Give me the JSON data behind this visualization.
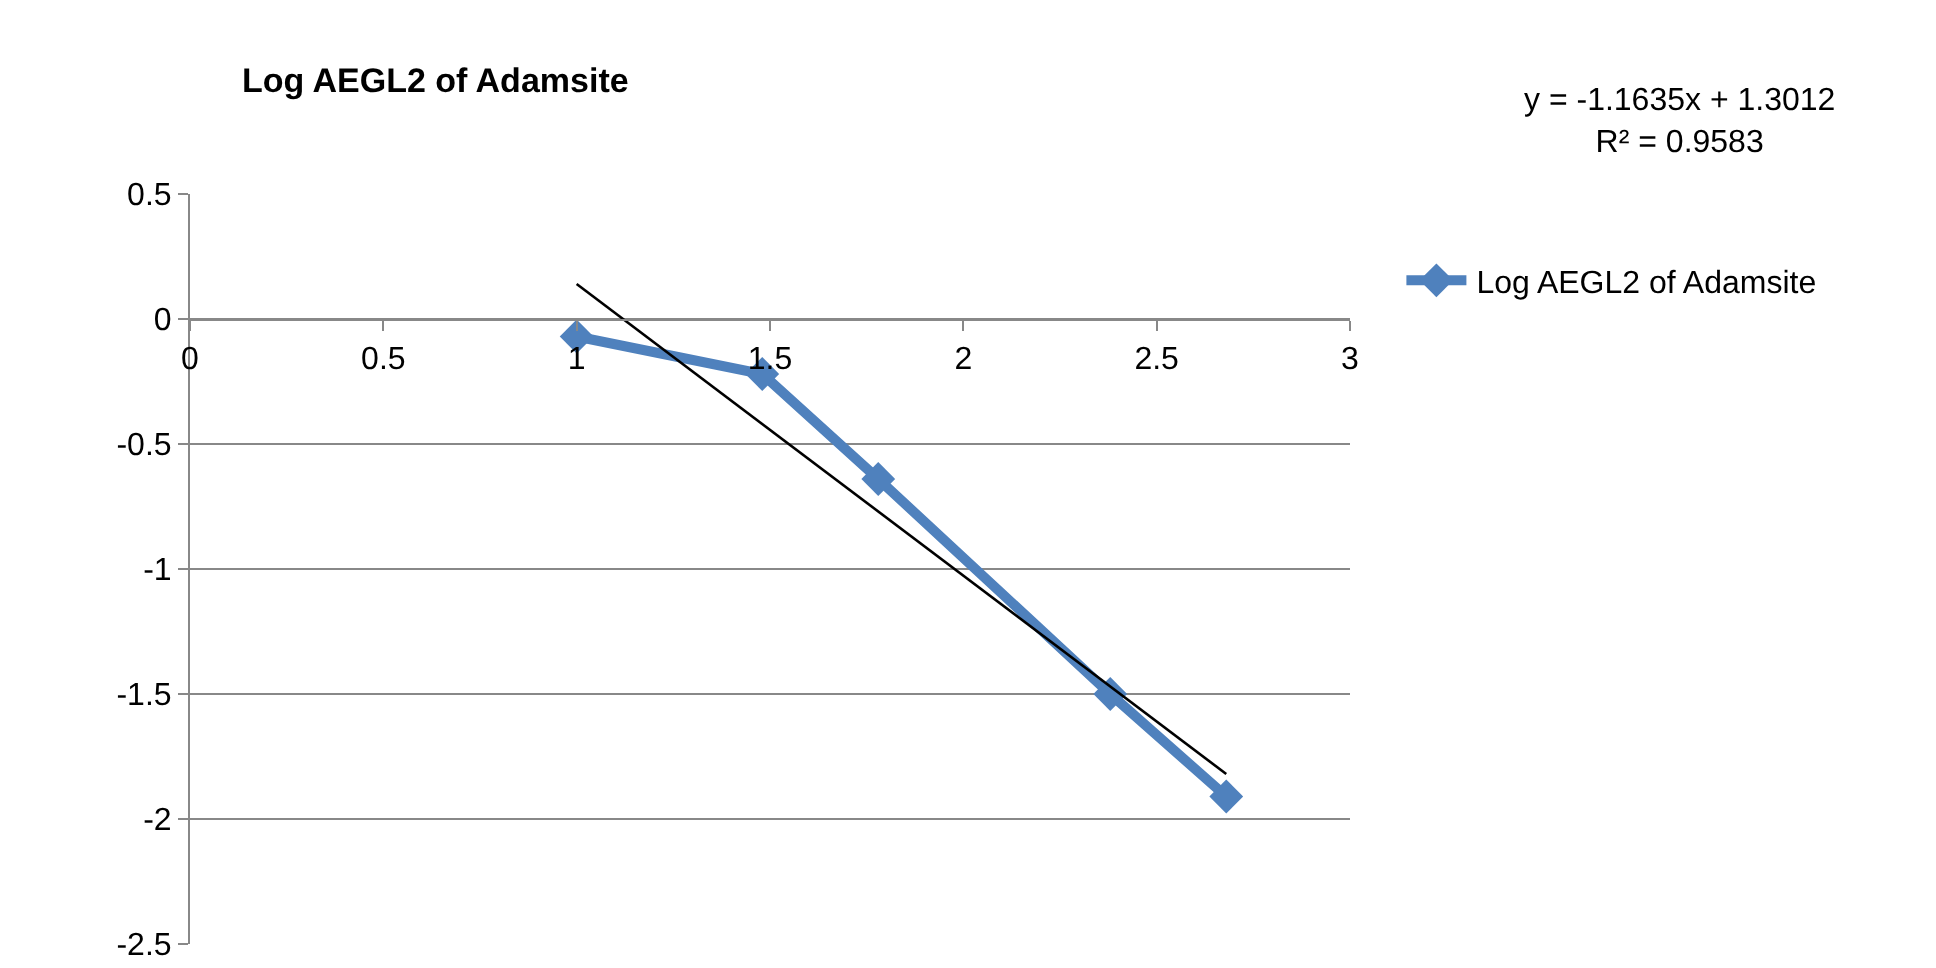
{
  "chart_data": {
    "type": "line",
    "title": "Log AEGL2 of Adamsite",
    "series": [
      {
        "name": "Log AEGL2 of Adamsite",
        "color": "#4f81bd",
        "x": [
          1,
          1.48,
          1.78,
          2.38,
          2.68
        ],
        "values": [
          -0.07,
          -0.22,
          -0.64,
          -1.5,
          -1.91
        ],
        "marker": "diamond"
      },
      {
        "type": "line",
        "color": "#000000",
        "x": [
          1,
          2.68
        ],
        "values": [
          0.14,
          -1.82
        ],
        "marker": "none"
      }
    ],
    "xlim": [
      0,
      3
    ],
    "xticks": [
      0,
      0.5,
      1,
      1.5,
      2,
      2.5,
      3
    ],
    "ylim": [
      -2.5,
      0.5
    ],
    "yticks": [
      -2.5,
      -2,
      -1.5,
      -1,
      -0.5,
      0,
      0.5
    ],
    "grid": "y",
    "legend": "right",
    "annotations": [
      "y = -1.1635x + 1.3012\nR² = 0.9583"
    ]
  }
}
